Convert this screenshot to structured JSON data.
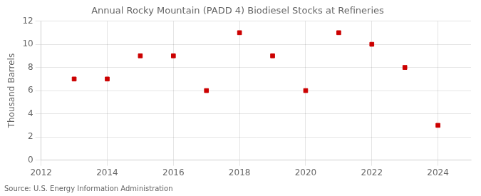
{
  "chart_data": {
    "type": "scatter",
    "title": "Annual Rocky Mountain (PADD 4) Biodiesel Stocks at Refineries",
    "ylabel": "Thousand Barrels",
    "source": "Source: U.S. Energy Information Administration",
    "x": [
      2013,
      2014,
      2015,
      2016,
      2017,
      2018,
      2019,
      2020,
      2021,
      2022,
      2023,
      2024
    ],
    "values": [
      7,
      7,
      9,
      9,
      6,
      11,
      9,
      6,
      11,
      10,
      8,
      3
    ],
    "color": "#cc0000",
    "marker": "square",
    "xlim": [
      2012,
      2025
    ],
    "ylim": [
      0,
      12
    ],
    "xticks": [
      2012,
      2014,
      2016,
      2018,
      2020,
      2022,
      2024
    ],
    "yticks": [
      0,
      2,
      4,
      6,
      8,
      10,
      12
    ],
    "grid": true
  }
}
